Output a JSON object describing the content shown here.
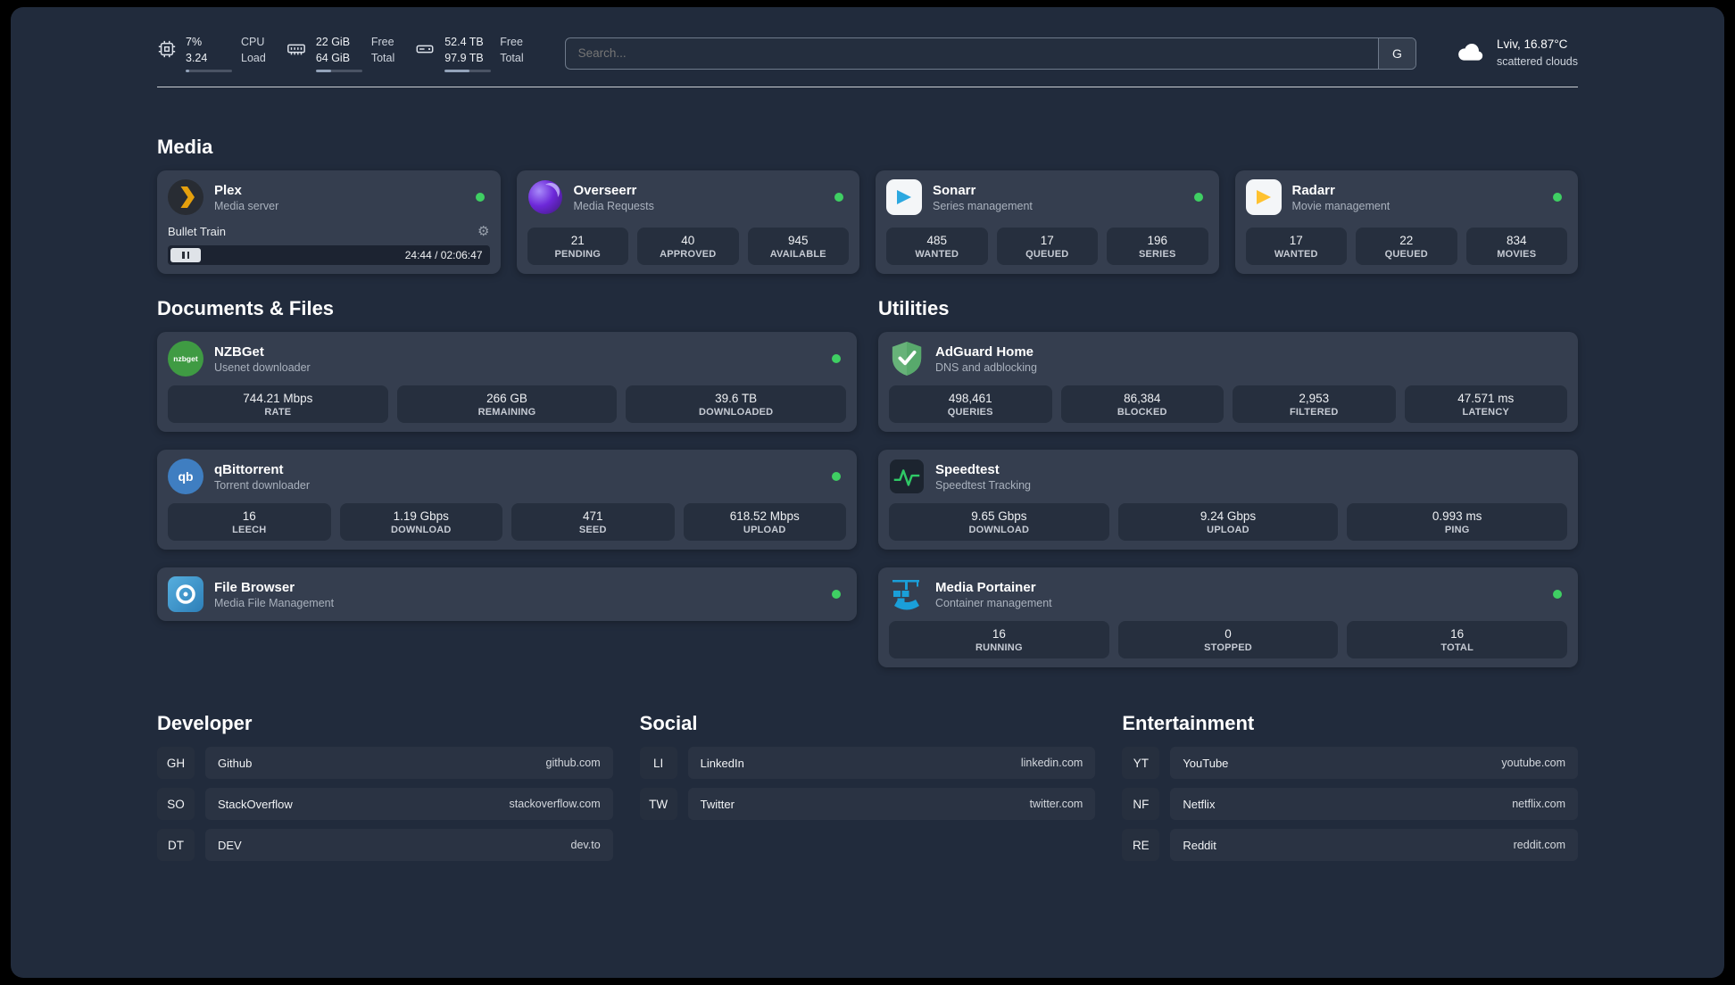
{
  "topbar": {
    "metrics": [
      {
        "name": "cpu",
        "line1": "7%",
        "line2": "3.24",
        "label1": "CPU",
        "label2": "Load",
        "progress": 7
      },
      {
        "name": "ram",
        "line1": "22 GiB",
        "line2": "64 GiB",
        "label1": "Free",
        "label2": "Total",
        "progress": 34
      },
      {
        "name": "disk",
        "line1": "52.4 TB",
        "line2": "97.9 TB",
        "label1": "Free",
        "label2": "Total",
        "progress": 53
      }
    ],
    "search": {
      "placeholder": "Search...",
      "button_label": "G"
    },
    "weather": {
      "location": "Lviv, 16.87°C",
      "condition": "scattered clouds"
    }
  },
  "sections": {
    "media": "Media",
    "documents": "Documents & Files",
    "utilities": "Utilities",
    "developer": "Developer",
    "social": "Social",
    "entertainment": "Entertainment"
  },
  "apps": {
    "plex": {
      "name": "Plex",
      "desc": "Media server",
      "media": {
        "title": "Bullet Train",
        "time": "24:44 / 02:06:47"
      }
    },
    "overseerr": {
      "name": "Overseerr",
      "desc": "Media Requests",
      "stats": [
        {
          "value": "21",
          "label": "PENDING"
        },
        {
          "value": "40",
          "label": "APPROVED"
        },
        {
          "value": "945",
          "label": "AVAILABLE"
        }
      ]
    },
    "sonarr": {
      "name": "Sonarr",
      "desc": "Series management",
      "stats": [
        {
          "value": "485",
          "label": "WANTED"
        },
        {
          "value": "17",
          "label": "QUEUED"
        },
        {
          "value": "196",
          "label": "SERIES"
        }
      ]
    },
    "radarr": {
      "name": "Radarr",
      "desc": "Movie management",
      "stats": [
        {
          "value": "17",
          "label": "WANTED"
        },
        {
          "value": "22",
          "label": "QUEUED"
        },
        {
          "value": "834",
          "label": "MOVIES"
        }
      ]
    },
    "nzbget": {
      "name": "NZBGet",
      "desc": "Usenet downloader",
      "icon_text": "nzbget",
      "stats": [
        {
          "value": "744.21 Mbps",
          "label": "RATE"
        },
        {
          "value": "266 GB",
          "label": "REMAINING"
        },
        {
          "value": "39.6 TB",
          "label": "DOWNLOADED"
        }
      ]
    },
    "qbittorrent": {
      "name": "qBittorrent",
      "desc": "Torrent downloader",
      "icon_text": "qb",
      "stats": [
        {
          "value": "16",
          "label": "LEECH"
        },
        {
          "value": "1.19 Gbps",
          "label": "DOWNLOAD"
        },
        {
          "value": "471",
          "label": "SEED"
        },
        {
          "value": "618.52 Mbps",
          "label": "UPLOAD"
        }
      ]
    },
    "filebrowser": {
      "name": "File Browser",
      "desc": "Media File Management"
    },
    "adguard": {
      "name": "AdGuard Home",
      "desc": "DNS and adblocking",
      "stats": [
        {
          "value": "498,461",
          "label": "QUERIES"
        },
        {
          "value": "86,384",
          "label": "BLOCKED"
        },
        {
          "value": "2,953",
          "label": "FILTERED"
        },
        {
          "value": "47.571 ms",
          "label": "LATENCY"
        }
      ]
    },
    "speedtest": {
      "name": "Speedtest",
      "desc": "Speedtest Tracking",
      "stats": [
        {
          "value": "9.65 Gbps",
          "label": "DOWNLOAD"
        },
        {
          "value": "9.24 Gbps",
          "label": "UPLOAD"
        },
        {
          "value": "0.993 ms",
          "label": "PING"
        }
      ]
    },
    "portainer": {
      "name": "Media Portainer",
      "desc": "Container management",
      "stats": [
        {
          "value": "16",
          "label": "RUNNING"
        },
        {
          "value": "0",
          "label": "STOPPED"
        },
        {
          "value": "16",
          "label": "TOTAL"
        }
      ]
    }
  },
  "bookmarks": {
    "developer": [
      {
        "abbr": "GH",
        "name": "Github",
        "url": "github.com"
      },
      {
        "abbr": "SO",
        "name": "StackOverflow",
        "url": "stackoverflow.com"
      },
      {
        "abbr": "DT",
        "name": "DEV",
        "url": "dev.to"
      }
    ],
    "social": [
      {
        "abbr": "LI",
        "name": "LinkedIn",
        "url": "linkedin.com"
      },
      {
        "abbr": "TW",
        "name": "Twitter",
        "url": "twitter.com"
      }
    ],
    "entertainment": [
      {
        "abbr": "YT",
        "name": "YouTube",
        "url": "youtube.com"
      },
      {
        "abbr": "NF",
        "name": "Netflix",
        "url": "netflix.com"
      },
      {
        "abbr": "RE",
        "name": "Reddit",
        "url": "reddit.com"
      }
    ]
  },
  "colors": {
    "status_green": "#3fcf63",
    "plex_amber": "#e5a00d",
    "sonarr_blue": "#2ca8e0",
    "radarr_amber": "#ffc230",
    "adguard_green": "#67b279",
    "portainer_blue": "#1a9fd9"
  }
}
